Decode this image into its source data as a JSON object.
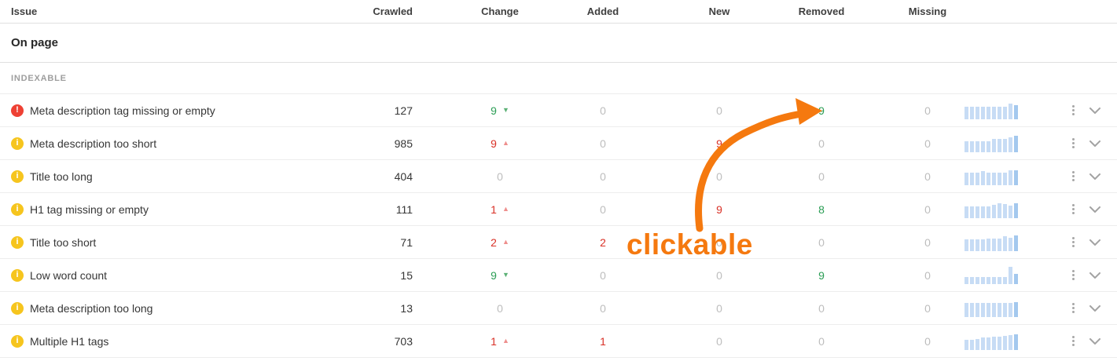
{
  "table": {
    "columns": [
      "Issue",
      "Crawled",
      "Change",
      "Added",
      "New",
      "Removed",
      "Missing"
    ],
    "section_title": "On page",
    "group_label": "INDEXABLE",
    "rows": [
      {
        "severity": "error",
        "issue": "Meta description tag missing or empty",
        "crawled": "127",
        "change": {
          "value": "9",
          "direction": "down",
          "tone": "good"
        },
        "added": {
          "value": "0",
          "tone": "muted"
        },
        "new": {
          "value": "0",
          "tone": "muted"
        },
        "removed": {
          "value": "9",
          "tone": "good"
        },
        "missing": {
          "value": "0",
          "tone": "muted"
        },
        "trend": [
          16,
          16,
          16,
          16,
          16,
          16,
          16,
          16,
          20,
          18
        ]
      },
      {
        "severity": "warning",
        "issue": "Meta description too short",
        "crawled": "985",
        "change": {
          "value": "9",
          "direction": "up",
          "tone": "bad"
        },
        "added": {
          "value": "0",
          "tone": "muted"
        },
        "new": {
          "value": "9",
          "tone": "bad"
        },
        "removed": {
          "value": "0",
          "tone": "muted"
        },
        "missing": {
          "value": "0",
          "tone": "muted"
        },
        "trend": [
          14,
          14,
          14,
          14,
          14,
          17,
          17,
          17,
          19,
          21
        ]
      },
      {
        "severity": "warning",
        "issue": "Title too long",
        "crawled": "404",
        "change": {
          "value": "0",
          "direction": null,
          "tone": "neutral"
        },
        "added": {
          "value": "0",
          "tone": "muted"
        },
        "new": {
          "value": "0",
          "tone": "muted"
        },
        "removed": {
          "value": "0",
          "tone": "muted"
        },
        "missing": {
          "value": "0",
          "tone": "muted"
        },
        "trend": [
          16,
          16,
          16,
          18,
          16,
          16,
          16,
          16,
          19,
          19
        ]
      },
      {
        "severity": "warning",
        "issue": "H1 tag missing or empty",
        "crawled": "111",
        "change": {
          "value": "1",
          "direction": "up",
          "tone": "bad"
        },
        "added": {
          "value": "0",
          "tone": "muted"
        },
        "new": {
          "value": "9",
          "tone": "bad"
        },
        "removed": {
          "value": "8",
          "tone": "good"
        },
        "missing": {
          "value": "0",
          "tone": "muted"
        },
        "trend": [
          15,
          15,
          15,
          15,
          15,
          17,
          19,
          18,
          16,
          19
        ]
      },
      {
        "severity": "warning",
        "issue": "Title too short",
        "crawled": "71",
        "change": {
          "value": "2",
          "direction": "up",
          "tone": "bad"
        },
        "added": {
          "value": "2",
          "tone": "bad"
        },
        "new": {
          "value": "0",
          "tone": "muted"
        },
        "removed": {
          "value": "0",
          "tone": "muted"
        },
        "missing": {
          "value": "0",
          "tone": "muted"
        },
        "trend": [
          15,
          15,
          15,
          15,
          16,
          16,
          16,
          19,
          17,
          20
        ]
      },
      {
        "severity": "warning",
        "issue": "Low word count",
        "crawled": "15",
        "change": {
          "value": "9",
          "direction": "down",
          "tone": "good"
        },
        "added": {
          "value": "0",
          "tone": "muted"
        },
        "new": {
          "value": "0",
          "tone": "muted"
        },
        "removed": {
          "value": "9",
          "tone": "good"
        },
        "missing": {
          "value": "0",
          "tone": "muted"
        },
        "trend": [
          9,
          9,
          9,
          9,
          9,
          9,
          9,
          9,
          22,
          13
        ]
      },
      {
        "severity": "warning",
        "issue": "Meta description too long",
        "crawled": "13",
        "change": {
          "value": "0",
          "direction": null,
          "tone": "neutral"
        },
        "added": {
          "value": "0",
          "tone": "muted"
        },
        "new": {
          "value": "0",
          "tone": "muted"
        },
        "removed": {
          "value": "0",
          "tone": "muted"
        },
        "missing": {
          "value": "0",
          "tone": "muted"
        },
        "trend": [
          18,
          18,
          18,
          18,
          18,
          18,
          18,
          18,
          18,
          19
        ]
      },
      {
        "severity": "warning",
        "issue": "Multiple H1 tags",
        "crawled": "703",
        "change": {
          "value": "1",
          "direction": "up",
          "tone": "bad"
        },
        "added": {
          "value": "1",
          "tone": "bad"
        },
        "new": {
          "value": "0",
          "tone": "muted"
        },
        "removed": {
          "value": "0",
          "tone": "muted"
        },
        "missing": {
          "value": "0",
          "tone": "muted"
        },
        "trend": [
          13,
          13,
          14,
          16,
          16,
          17,
          17,
          18,
          19,
          20
        ]
      }
    ]
  },
  "annotation": {
    "label": "clickable"
  },
  "colors": {
    "good": "#2a9d54",
    "bad": "#d93026",
    "muted": "#bdbdbd",
    "triangle_up": "#ee8f8d",
    "triangle_down": "#5cb176",
    "bar_light": "#c7dcf5",
    "bar_dark": "#a4c8ee",
    "error": "#ee4134",
    "warning": "#f6c51e",
    "annotation": "#f5790f"
  }
}
